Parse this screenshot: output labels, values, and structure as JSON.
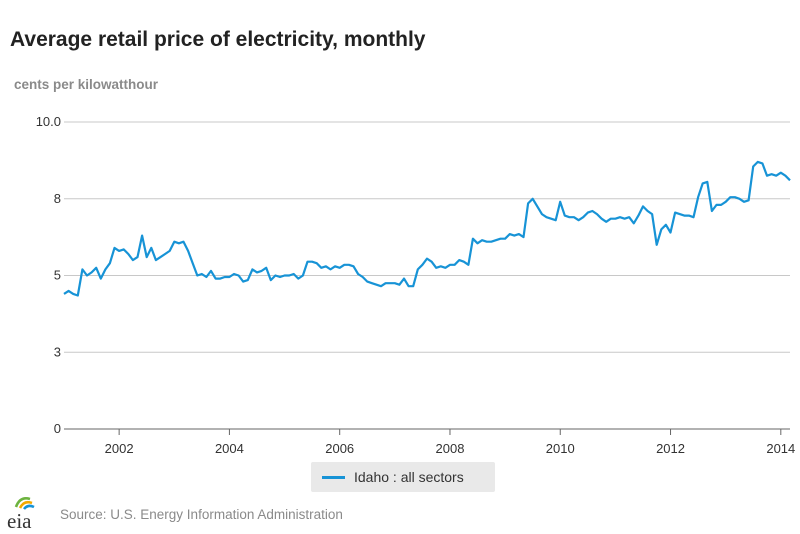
{
  "chart_data": {
    "type": "line",
    "title": "Average retail price of electricity, monthly",
    "ylabel": "cents per kilowatthour",
    "ylim": [
      0,
      10
    ],
    "yticks": [
      {
        "value": 0,
        "label": "0"
      },
      {
        "value": 2.5,
        "label": "3"
      },
      {
        "value": 5,
        "label": "5"
      },
      {
        "value": 7.5,
        "label": "8"
      },
      {
        "value": 10,
        "label": "10.0"
      }
    ],
    "xlim": [
      2001.0,
      2014.1667
    ],
    "xticks": [
      {
        "value": 2002,
        "label": "2002"
      },
      {
        "value": 2004,
        "label": "2004"
      },
      {
        "value": 2006,
        "label": "2006"
      },
      {
        "value": 2008,
        "label": "2008"
      },
      {
        "value": 2010,
        "label": "2010"
      },
      {
        "value": 2012,
        "label": "2012"
      },
      {
        "value": 2014,
        "label": "2014"
      }
    ],
    "series": [
      {
        "name": "Idaho : all sectors",
        "color": "#1793d6",
        "x_start": 2001.0,
        "x_step": 0.083333,
        "values": [
          4.4,
          4.5,
          4.4,
          4.35,
          5.2,
          5.0,
          5.1,
          5.25,
          4.9,
          5.2,
          5.4,
          5.9,
          5.8,
          5.85,
          5.7,
          5.5,
          5.6,
          6.3,
          5.6,
          5.9,
          5.5,
          5.6,
          5.7,
          5.8,
          6.1,
          6.05,
          6.1,
          5.8,
          5.4,
          5.0,
          5.05,
          4.95,
          5.15,
          4.9,
          4.9,
          4.95,
          4.95,
          5.05,
          5.0,
          4.8,
          4.85,
          5.2,
          5.1,
          5.15,
          5.25,
          4.85,
          5.0,
          4.95,
          5.0,
          5.0,
          5.05,
          4.9,
          5.0,
          5.45,
          5.45,
          5.4,
          5.25,
          5.3,
          5.2,
          5.3,
          5.25,
          5.35,
          5.35,
          5.3,
          5.05,
          4.95,
          4.8,
          4.75,
          4.7,
          4.65,
          4.75,
          4.75,
          4.75,
          4.7,
          4.9,
          4.65,
          4.65,
          5.2,
          5.35,
          5.55,
          5.45,
          5.25,
          5.3,
          5.25,
          5.35,
          5.35,
          5.5,
          5.45,
          5.35,
          6.2,
          6.05,
          6.15,
          6.1,
          6.1,
          6.15,
          6.2,
          6.2,
          6.35,
          6.3,
          6.35,
          6.25,
          7.35,
          7.5,
          7.25,
          7.0,
          6.9,
          6.85,
          6.8,
          7.4,
          6.95,
          6.9,
          6.9,
          6.8,
          6.9,
          7.05,
          7.1,
          7.0,
          6.85,
          6.75,
          6.85,
          6.85,
          6.9,
          6.85,
          6.9,
          6.7,
          6.95,
          7.25,
          7.1,
          7.0,
          6.0,
          6.5,
          6.65,
          6.4,
          7.05,
          7.0,
          6.95,
          6.95,
          6.9,
          7.55,
          8.0,
          8.05,
          7.1,
          7.3,
          7.3,
          7.4,
          7.55,
          7.55,
          7.5,
          7.4,
          7.45,
          8.55,
          8.7,
          8.65,
          8.25,
          8.3,
          8.25,
          8.35,
          8.25,
          8.1
        ]
      }
    ],
    "legend": "bottom-center",
    "grid": "horizontal"
  },
  "source": "Source: U.S. Energy Information Administration",
  "logo_text": "eia"
}
